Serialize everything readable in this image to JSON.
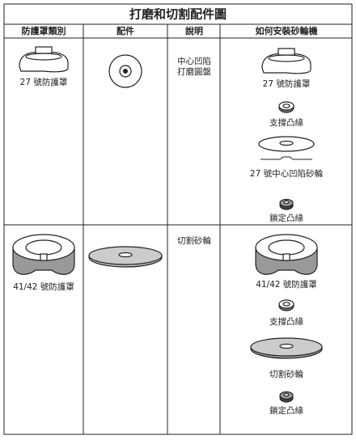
{
  "title": "打磨和切割配件圖",
  "table": {
    "headers": [
      "防護罩類別",
      "配件",
      "說明",
      "如何安裝砂輪機"
    ],
    "rows": [
      {
        "guard": "27 號防護罩",
        "description": [
          "中心凹陷",
          "打磨圓盤"
        ],
        "installation": [
          "27 號防護罩",
          "支撐凸緣",
          "27 號中心凹陷砂輪",
          "鎖定凸緣"
        ]
      },
      {
        "guard": "41/42 號防護罩",
        "description": [
          "切割砂輪"
        ],
        "installation": [
          "41/42 號防護罩",
          "支撐凸緣",
          "切割砂輪",
          "鎖定凸緣"
        ]
      }
    ]
  }
}
